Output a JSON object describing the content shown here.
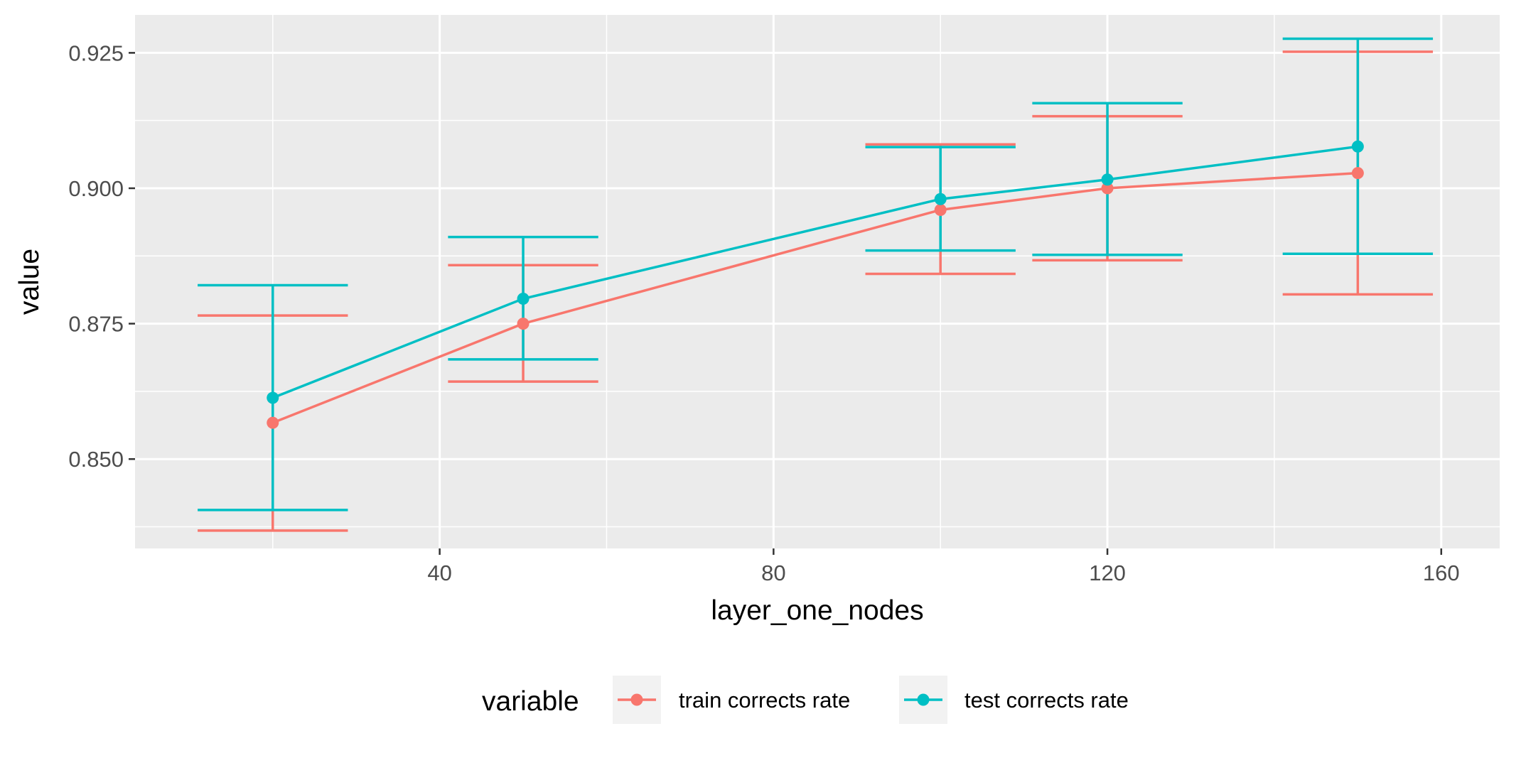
{
  "chart_data": {
    "type": "line",
    "title": "",
    "xlabel": "layer_one_nodes",
    "ylabel": "value",
    "xlim": [
      3.5,
      167
    ],
    "ylim": [
      0.8335,
      0.932
    ],
    "x_ticks": [
      40,
      80,
      120,
      160
    ],
    "x_tick_labels": [
      "40",
      "80",
      "120",
      "160"
    ],
    "y_ticks": [
      0.85,
      0.875,
      0.9,
      0.925
    ],
    "y_tick_labels": [
      "0.850",
      "0.875",
      "0.900",
      "0.925"
    ],
    "grid": true,
    "legend": {
      "title": "variable",
      "position": "bottom"
    },
    "error_bar_half_width": 9,
    "series": [
      {
        "name": "train corrects rate",
        "color": "#F8766D",
        "x": [
          20,
          50,
          100,
          120,
          150
        ],
        "y": [
          0.8567,
          0.875,
          0.896,
          0.9,
          0.9028
        ],
        "ymin": [
          0.8368,
          0.8643,
          0.8842,
          0.8867,
          0.8804
        ],
        "ymax": [
          0.8765,
          0.8858,
          0.9081,
          0.9133,
          0.9252
        ]
      },
      {
        "name": "test corrects rate",
        "color": "#00BFC4",
        "x": [
          20,
          50,
          100,
          120,
          150
        ],
        "y": [
          0.8613,
          0.8796,
          0.898,
          0.9016,
          0.9077
        ],
        "ymin": [
          0.8406,
          0.8684,
          0.8885,
          0.8877,
          0.8879
        ],
        "ymax": [
          0.8821,
          0.891,
          0.9076,
          0.9157,
          0.9276
        ]
      }
    ]
  },
  "colors": {
    "panel_bg": "#EBEBEB",
    "grid_major": "#FFFFFF",
    "legend_key_bg": "#F2F2F2"
  }
}
